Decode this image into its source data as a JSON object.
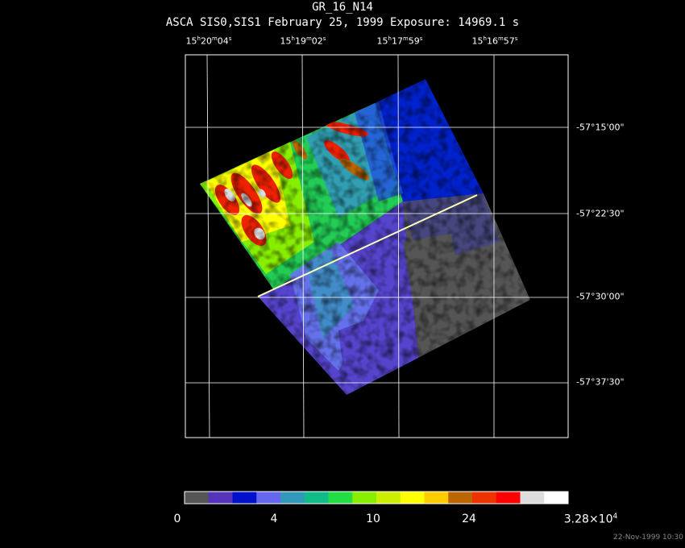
{
  "title": "GR_16_N14",
  "subtitle": "ASCA SIS0,SIS1 February 25, 1999 Exposure: 14969.1 s",
  "ra_labels": [
    {
      "h": "15",
      "m": "20",
      "s": "04"
    },
    {
      "h": "15",
      "m": "19",
      "s": "02"
    },
    {
      "h": "15",
      "m": "17",
      "s": "59"
    },
    {
      "h": "15",
      "m": "16",
      "s": "57"
    }
  ],
  "dec_labels": [
    "-57°15'00\"",
    "-57°22'30\"",
    "-57°30'00\"",
    "-57°37'30\""
  ],
  "colorbar": {
    "labels": [
      "0",
      "4",
      "10",
      "24"
    ],
    "max_mantissa": "3.28×10",
    "max_exponent": "4",
    "colors": [
      "#555555",
      "#5533bb",
      "#0011cc",
      "#6666ee",
      "#3399bb",
      "#11bb88",
      "#22dd44",
      "#88ee00",
      "#ccee00",
      "#ffff00",
      "#ffcc00",
      "#bb6600",
      "#ee3300",
      "#ff0000",
      "#dddddd",
      "#ffffff"
    ]
  },
  "timestamp": "22-Nov-1999 10:30"
}
